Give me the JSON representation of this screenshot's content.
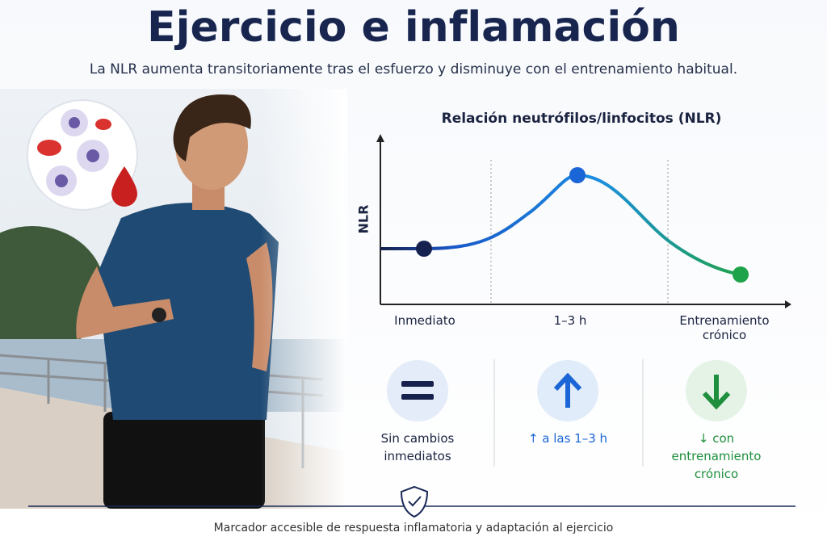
{
  "header": {
    "title": "Ejercicio e inflamación",
    "subtitle": "La NLR aumenta transitoriamente tras el esfuerzo y disminuye con el entrenamiento habitual."
  },
  "chart": {
    "title": "Relación neutrófilos/linfocitos (NLR)",
    "y_label": "NLR",
    "x_labels": [
      "Inmediato",
      "1–3 h",
      "Entrenamiento crónico"
    ]
  },
  "cards": [
    {
      "label": "Sin cambios inmediatos"
    },
    {
      "label": "↑ a las 1–3 h"
    },
    {
      "label": "↓ con entrenamiento crónico"
    }
  ],
  "footer": "Marcador accesible de respuesta inflamatoria y adaptación al ejercicio"
}
